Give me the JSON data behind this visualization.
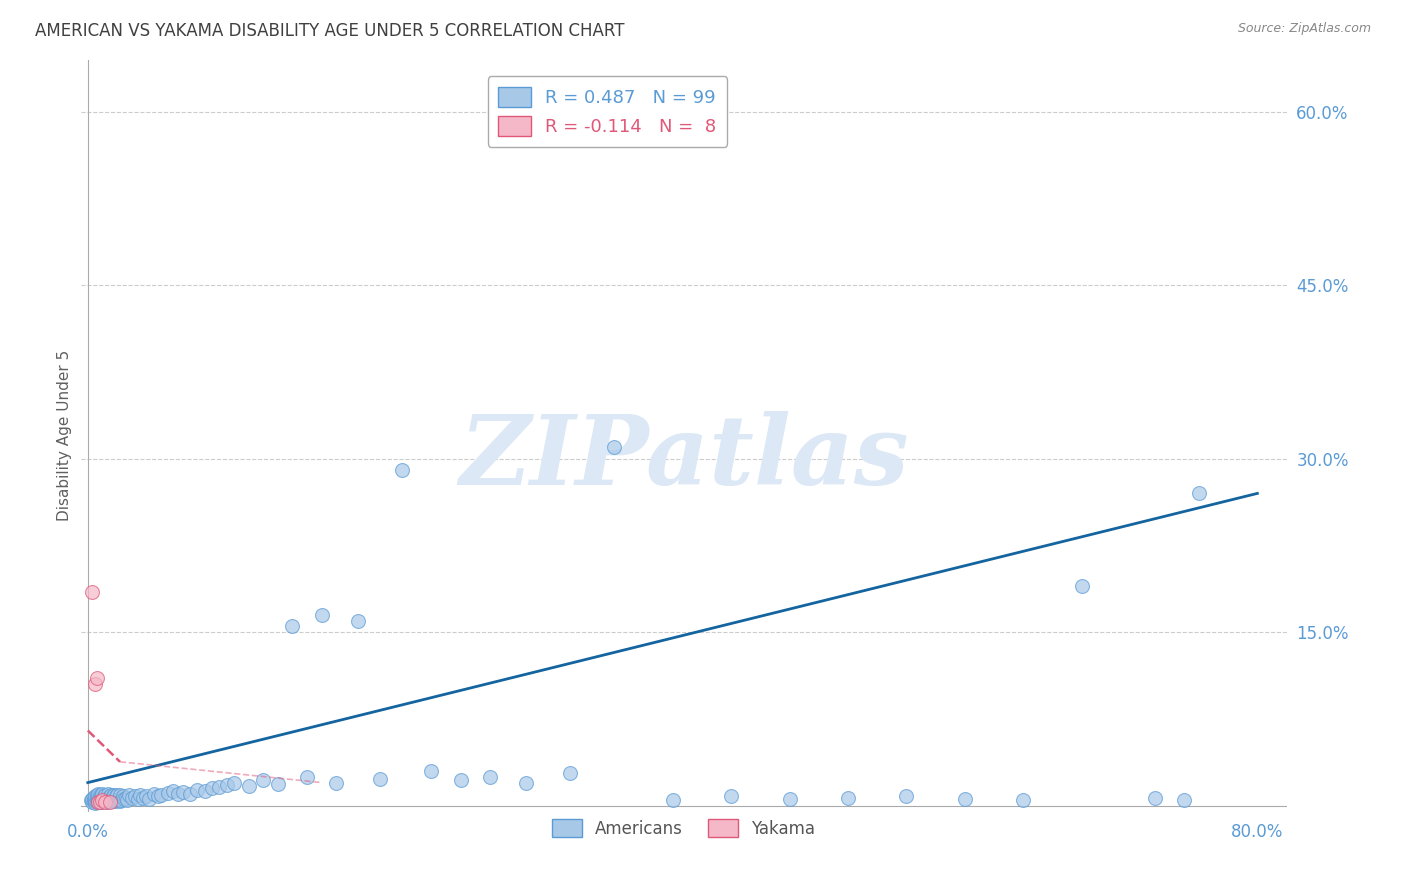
{
  "title": "AMERICAN VS YAKAMA DISABILITY AGE UNDER 5 CORRELATION CHART",
  "source": "Source: ZipAtlas.com",
  "ylabel_label": "Disability Age Under 5",
  "yticks": [
    0.0,
    0.15,
    0.3,
    0.45,
    0.6
  ],
  "ytick_labels": [
    "",
    "15.0%",
    "30.0%",
    "45.0%",
    "60.0%"
  ],
  "xlim": [
    -0.005,
    0.82
  ],
  "ylim": [
    -0.005,
    0.645
  ],
  "watermark_text": "ZIPatlas",
  "americans_N": 99,
  "yakama_N": 8,
  "americans_x": [
    0.002,
    0.003,
    0.003,
    0.004,
    0.004,
    0.005,
    0.005,
    0.005,
    0.006,
    0.006,
    0.006,
    0.007,
    0.007,
    0.007,
    0.008,
    0.008,
    0.008,
    0.009,
    0.009,
    0.01,
    0.01,
    0.01,
    0.011,
    0.011,
    0.012,
    0.012,
    0.013,
    0.013,
    0.014,
    0.014,
    0.015,
    0.015,
    0.016,
    0.016,
    0.017,
    0.017,
    0.018,
    0.018,
    0.019,
    0.019,
    0.02,
    0.02,
    0.021,
    0.022,
    0.022,
    0.023,
    0.024,
    0.025,
    0.026,
    0.027,
    0.028,
    0.03,
    0.032,
    0.034,
    0.036,
    0.038,
    0.04,
    0.042,
    0.045,
    0.048,
    0.05,
    0.055,
    0.058,
    0.062,
    0.065,
    0.07,
    0.075,
    0.08,
    0.085,
    0.09,
    0.095,
    0.1,
    0.11,
    0.12,
    0.13,
    0.14,
    0.15,
    0.16,
    0.17,
    0.185,
    0.2,
    0.215,
    0.235,
    0.255,
    0.275,
    0.3,
    0.33,
    0.36,
    0.4,
    0.44,
    0.48,
    0.52,
    0.56,
    0.6,
    0.64,
    0.68,
    0.73,
    0.75,
    0.76
  ],
  "americans_y": [
    0.005,
    0.003,
    0.006,
    0.004,
    0.007,
    0.002,
    0.005,
    0.008,
    0.003,
    0.006,
    0.009,
    0.004,
    0.007,
    0.01,
    0.003,
    0.006,
    0.009,
    0.004,
    0.008,
    0.003,
    0.006,
    0.01,
    0.004,
    0.008,
    0.005,
    0.009,
    0.003,
    0.007,
    0.005,
    0.01,
    0.004,
    0.008,
    0.005,
    0.009,
    0.004,
    0.008,
    0.005,
    0.009,
    0.004,
    0.008,
    0.005,
    0.009,
    0.006,
    0.004,
    0.009,
    0.005,
    0.008,
    0.006,
    0.007,
    0.005,
    0.009,
    0.007,
    0.008,
    0.006,
    0.009,
    0.007,
    0.008,
    0.006,
    0.01,
    0.008,
    0.009,
    0.011,
    0.013,
    0.01,
    0.012,
    0.01,
    0.014,
    0.013,
    0.015,
    0.016,
    0.018,
    0.02,
    0.017,
    0.022,
    0.019,
    0.155,
    0.025,
    0.165,
    0.02,
    0.16,
    0.023,
    0.29,
    0.03,
    0.022,
    0.025,
    0.02,
    0.028,
    0.31,
    0.005,
    0.008,
    0.006,
    0.007,
    0.008,
    0.006,
    0.005,
    0.19,
    0.007,
    0.005,
    0.27
  ],
  "yakama_x": [
    0.003,
    0.005,
    0.006,
    0.007,
    0.008,
    0.01,
    0.012,
    0.015
  ],
  "yakama_y": [
    0.185,
    0.105,
    0.11,
    0.003,
    0.003,
    0.005,
    0.003,
    0.003
  ],
  "dot_size": 100,
  "american_face_color": "#a8c8e8",
  "american_edge_color": "#5b9bd5",
  "yakama_face_color": "#f4b8c8",
  "yakama_edge_color": "#e05878",
  "regression_blue_color": "#1464a0",
  "regression_pink_color": "#e05878",
  "background_color": "#ffffff",
  "grid_color": "#cccccc",
  "title_color": "#404040",
  "axis_tick_color": "#5b9bd5",
  "ylabel_color": "#606060",
  "watermark_color": "#dce8f5",
  "title_fontsize": 12,
  "source_fontsize": 9,
  "axis_label_fontsize": 11,
  "tick_fontsize": 12,
  "legend_fontsize": 13
}
